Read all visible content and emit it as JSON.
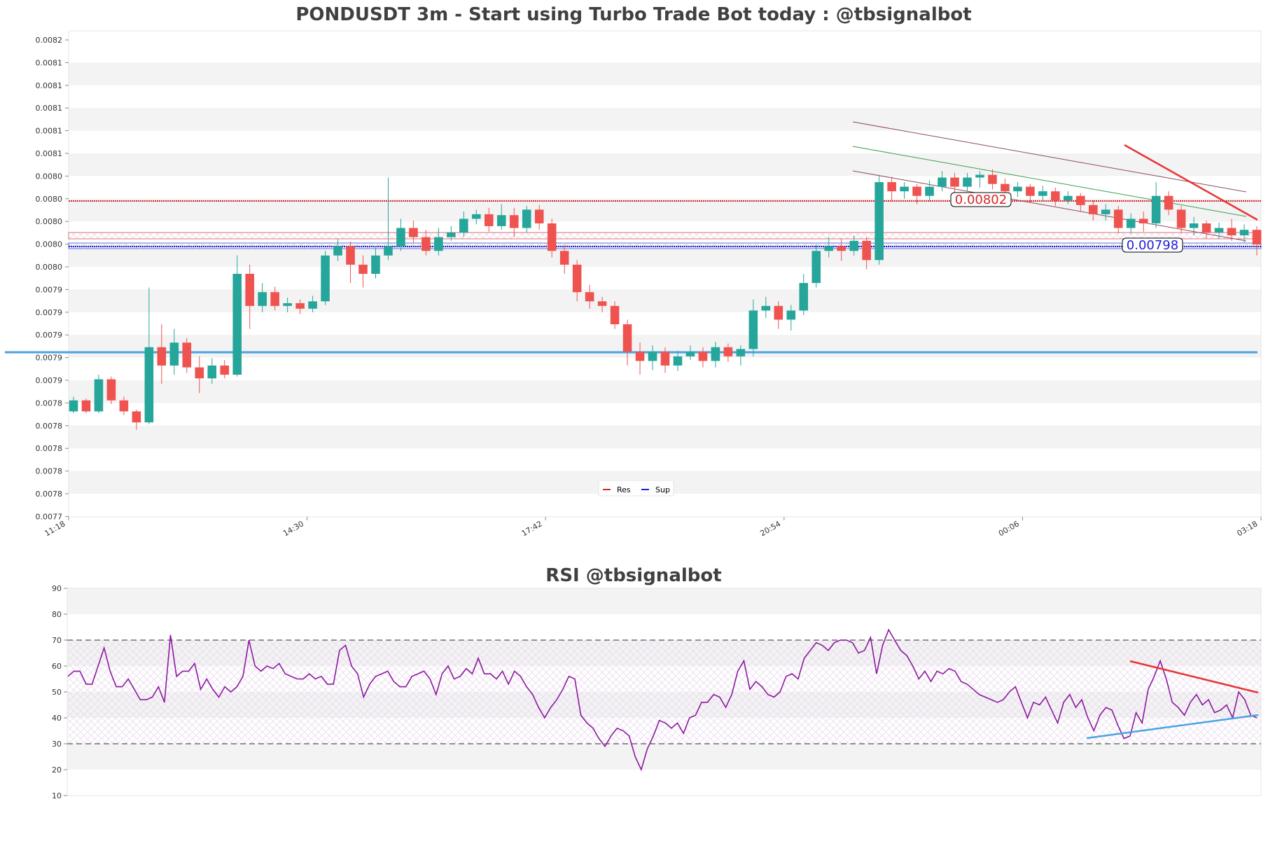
{
  "chart_data": [
    {
      "type": "candlestick",
      "title": "PONDUSDT 3m - Start using Turbo Trade Bot today : @tbsignalbot",
      "y_tick_labels": [
        "0.0082",
        "0.0081",
        "0.0081",
        "0.0081",
        "0.0081",
        "0.0081",
        "0.0080",
        "0.0080",
        "0.0080",
        "0.0080",
        "0.0080",
        "0.0079",
        "0.0079",
        "0.0079",
        "0.0079",
        "0.0079",
        "0.0078",
        "0.0078",
        "0.0078",
        "0.0078",
        "0.0078",
        "0.0077"
      ],
      "x_tick_labels": [
        "11:18",
        "14:30",
        "17:42",
        "20:54",
        "00:06",
        "03:18"
      ],
      "ylim": [
        0.007695,
        0.008225
      ],
      "grid": "horizontal bands",
      "legend_position": "bottom-center",
      "legend": [
        {
          "label": "Res",
          "color": "#d62728"
        },
        {
          "label": "Sup",
          "color": "#1f1fd6"
        }
      ],
      "resistance_level": 0.00802,
      "support_level": 0.00798,
      "resistance_label": "0.00802",
      "support_label": "0.00798",
      "candles": [
        {
          "o": 0.00781,
          "c": 0.007822,
          "h": 0.007826,
          "l": 0.007808
        },
        {
          "o": 0.007822,
          "c": 0.00781,
          "h": 0.007824,
          "l": 0.007808
        },
        {
          "o": 0.00781,
          "c": 0.007845,
          "h": 0.00785,
          "l": 0.007808
        },
        {
          "o": 0.007845,
          "c": 0.007822,
          "h": 0.007848,
          "l": 0.007818
        },
        {
          "o": 0.007822,
          "c": 0.00781,
          "h": 0.007826,
          "l": 0.007806
        },
        {
          "o": 0.00781,
          "c": 0.007798,
          "h": 0.007812,
          "l": 0.00779
        },
        {
          "o": 0.007798,
          "c": 0.00788,
          "h": 0.007945,
          "l": 0.007796
        },
        {
          "o": 0.00788,
          "c": 0.00786,
          "h": 0.007905,
          "l": 0.00784
        },
        {
          "o": 0.00786,
          "c": 0.007885,
          "h": 0.0079,
          "l": 0.00785
        },
        {
          "o": 0.007885,
          "c": 0.007858,
          "h": 0.00789,
          "l": 0.007852
        },
        {
          "o": 0.007858,
          "c": 0.007846,
          "h": 0.00787,
          "l": 0.00783
        },
        {
          "o": 0.007846,
          "c": 0.00786,
          "h": 0.007868,
          "l": 0.00784
        },
        {
          "o": 0.00786,
          "c": 0.00785,
          "h": 0.007866,
          "l": 0.007846
        },
        {
          "o": 0.00785,
          "c": 0.00796,
          "h": 0.00798,
          "l": 0.007848
        },
        {
          "o": 0.00796,
          "c": 0.007925,
          "h": 0.00797,
          "l": 0.0079
        },
        {
          "o": 0.007925,
          "c": 0.00794,
          "h": 0.00795,
          "l": 0.007918
        },
        {
          "o": 0.00794,
          "c": 0.007925,
          "h": 0.007946,
          "l": 0.00792
        },
        {
          "o": 0.007925,
          "c": 0.007928,
          "h": 0.007934,
          "l": 0.007918
        },
        {
          "o": 0.007928,
          "c": 0.007922,
          "h": 0.007932,
          "l": 0.007916
        },
        {
          "o": 0.007922,
          "c": 0.00793,
          "h": 0.007936,
          "l": 0.007918
        },
        {
          "o": 0.00793,
          "c": 0.00798,
          "h": 0.007985,
          "l": 0.007926
        },
        {
          "o": 0.00798,
          "c": 0.00799,
          "h": 0.007998,
          "l": 0.007974
        },
        {
          "o": 0.00799,
          "c": 0.00797,
          "h": 0.007995,
          "l": 0.00795
        },
        {
          "o": 0.00797,
          "c": 0.00796,
          "h": 0.00798,
          "l": 0.007945
        },
        {
          "o": 0.00796,
          "c": 0.00798,
          "h": 0.00799,
          "l": 0.007955
        },
        {
          "o": 0.00798,
          "c": 0.00799,
          "h": 0.008065,
          "l": 0.007975
        },
        {
          "o": 0.00799,
          "c": 0.00801,
          "h": 0.00802,
          "l": 0.007985
        },
        {
          "o": 0.00801,
          "c": 0.008,
          "h": 0.008018,
          "l": 0.007994
        },
        {
          "o": 0.008,
          "c": 0.007985,
          "h": 0.008008,
          "l": 0.00798
        },
        {
          "o": 0.007985,
          "c": 0.008,
          "h": 0.00801,
          "l": 0.00798
        },
        {
          "o": 0.008,
          "c": 0.008005,
          "h": 0.008012,
          "l": 0.007996
        },
        {
          "o": 0.008005,
          "c": 0.00802,
          "h": 0.008028,
          "l": 0.008
        },
        {
          "o": 0.00802,
          "c": 0.008025,
          "h": 0.00803,
          "l": 0.008014
        },
        {
          "o": 0.008025,
          "c": 0.008012,
          "h": 0.008032,
          "l": 0.008006
        },
        {
          "o": 0.008012,
          "c": 0.008024,
          "h": 0.008036,
          "l": 0.008008
        },
        {
          "o": 0.008024,
          "c": 0.00801,
          "h": 0.008032,
          "l": 0.008
        },
        {
          "o": 0.00801,
          "c": 0.00803,
          "h": 0.008034,
          "l": 0.008005
        },
        {
          "o": 0.00803,
          "c": 0.008015,
          "h": 0.008035,
          "l": 0.008008
        },
        {
          "o": 0.008015,
          "c": 0.007985,
          "h": 0.00802,
          "l": 0.007978
        },
        {
          "o": 0.007985,
          "c": 0.00797,
          "h": 0.007992,
          "l": 0.00796
        },
        {
          "o": 0.00797,
          "c": 0.00794,
          "h": 0.007975,
          "l": 0.00793
        },
        {
          "o": 0.00794,
          "c": 0.00793,
          "h": 0.007948,
          "l": 0.007922
        },
        {
          "o": 0.00793,
          "c": 0.007925,
          "h": 0.007935,
          "l": 0.007918
        },
        {
          "o": 0.007925,
          "c": 0.007905,
          "h": 0.00793,
          "l": 0.0079
        },
        {
          "o": 0.007905,
          "c": 0.007875,
          "h": 0.00791,
          "l": 0.00786
        },
        {
          "o": 0.007875,
          "c": 0.007865,
          "h": 0.007885,
          "l": 0.00785
        },
        {
          "o": 0.007865,
          "c": 0.007875,
          "h": 0.007882,
          "l": 0.007855
        },
        {
          "o": 0.007875,
          "c": 0.00786,
          "h": 0.00788,
          "l": 0.007852
        },
        {
          "o": 0.00786,
          "c": 0.00787,
          "h": 0.007876,
          "l": 0.007854
        },
        {
          "o": 0.00787,
          "c": 0.007875,
          "h": 0.007882,
          "l": 0.007866
        },
        {
          "o": 0.007875,
          "c": 0.007865,
          "h": 0.00788,
          "l": 0.007858
        },
        {
          "o": 0.007865,
          "c": 0.00788,
          "h": 0.007886,
          "l": 0.007858
        },
        {
          "o": 0.00788,
          "c": 0.00787,
          "h": 0.007884,
          "l": 0.007864
        },
        {
          "o": 0.00787,
          "c": 0.007878,
          "h": 0.007882,
          "l": 0.00786
        },
        {
          "o": 0.007878,
          "c": 0.00792,
          "h": 0.007932,
          "l": 0.00787
        },
        {
          "o": 0.00792,
          "c": 0.007925,
          "h": 0.007935,
          "l": 0.007912
        },
        {
          "o": 0.007925,
          "c": 0.00791,
          "h": 0.00793,
          "l": 0.0079
        },
        {
          "o": 0.00791,
          "c": 0.00792,
          "h": 0.007926,
          "l": 0.007898
        },
        {
          "o": 0.00792,
          "c": 0.00795,
          "h": 0.00796,
          "l": 0.007915
        },
        {
          "o": 0.00795,
          "c": 0.007985,
          "h": 0.007992,
          "l": 0.007945
        },
        {
          "o": 0.007985,
          "c": 0.00799,
          "h": 0.008,
          "l": 0.007978
        },
        {
          "o": 0.00799,
          "c": 0.007985,
          "h": 0.007998,
          "l": 0.007974
        },
        {
          "o": 0.007985,
          "c": 0.007996,
          "h": 0.008002,
          "l": 0.00798
        },
        {
          "o": 0.007996,
          "c": 0.007975,
          "h": 0.008,
          "l": 0.007965
        },
        {
          "o": 0.007975,
          "c": 0.00806,
          "h": 0.008068,
          "l": 0.00797
        },
        {
          "o": 0.00806,
          "c": 0.00805,
          "h": 0.008066,
          "l": 0.00804
        },
        {
          "o": 0.00805,
          "c": 0.008055,
          "h": 0.00806,
          "l": 0.008042
        },
        {
          "o": 0.008055,
          "c": 0.008045,
          "h": 0.008058,
          "l": 0.008036
        },
        {
          "o": 0.008045,
          "c": 0.008055,
          "h": 0.008062,
          "l": 0.00804
        },
        {
          "o": 0.008055,
          "c": 0.008065,
          "h": 0.008072,
          "l": 0.00805
        },
        {
          "o": 0.008065,
          "c": 0.008055,
          "h": 0.00807,
          "l": 0.008048
        },
        {
          "o": 0.008055,
          "c": 0.008065,
          "h": 0.00807,
          "l": 0.00805
        },
        {
          "o": 0.008065,
          "c": 0.008068,
          "h": 0.008072,
          "l": 0.008054
        },
        {
          "o": 0.008068,
          "c": 0.008058,
          "h": 0.008074,
          "l": 0.008052
        },
        {
          "o": 0.008058,
          "c": 0.00805,
          "h": 0.008064,
          "l": 0.008044
        },
        {
          "o": 0.00805,
          "c": 0.008055,
          "h": 0.00806,
          "l": 0.008044
        },
        {
          "o": 0.008055,
          "c": 0.008045,
          "h": 0.008058,
          "l": 0.008038
        },
        {
          "o": 0.008045,
          "c": 0.00805,
          "h": 0.008056,
          "l": 0.00804
        },
        {
          "o": 0.00805,
          "c": 0.00804,
          "h": 0.008054,
          "l": 0.008034
        },
        {
          "o": 0.00804,
          "c": 0.008045,
          "h": 0.00805,
          "l": 0.008036
        },
        {
          "o": 0.008045,
          "c": 0.008035,
          "h": 0.008048,
          "l": 0.008028
        },
        {
          "o": 0.008035,
          "c": 0.008025,
          "h": 0.00804,
          "l": 0.008018
        },
        {
          "o": 0.008025,
          "c": 0.00803,
          "h": 0.008036,
          "l": 0.008018
        },
        {
          "o": 0.00803,
          "c": 0.00801,
          "h": 0.008034,
          "l": 0.008004
        },
        {
          "o": 0.00801,
          "c": 0.00802,
          "h": 0.008026,
          "l": 0.008004
        },
        {
          "o": 0.00802,
          "c": 0.008015,
          "h": 0.008028,
          "l": 0.008006
        },
        {
          "o": 0.008015,
          "c": 0.008045,
          "h": 0.00806,
          "l": 0.00801
        },
        {
          "o": 0.008045,
          "c": 0.00803,
          "h": 0.00805,
          "l": 0.008024
        },
        {
          "o": 0.00803,
          "c": 0.00801,
          "h": 0.008034,
          "l": 0.008004
        },
        {
          "o": 0.00801,
          "c": 0.008015,
          "h": 0.008022,
          "l": 0.008002
        },
        {
          "o": 0.008015,
          "c": 0.008005,
          "h": 0.008018,
          "l": 0.007998
        },
        {
          "o": 0.008005,
          "c": 0.00801,
          "h": 0.008016,
          "l": 0.007998
        },
        {
          "o": 0.00801,
          "c": 0.008002,
          "h": 0.00802,
          "l": 0.007996
        },
        {
          "o": 0.008002,
          "c": 0.008008,
          "h": 0.008014,
          "l": 0.007994
        },
        {
          "o": 0.008008,
          "c": 0.007992,
          "h": 0.008012,
          "l": 0.00798
        }
      ]
    },
    {
      "type": "line",
      "title": "RSI @tbsignalbot",
      "y_tick_labels": [
        "90",
        "80",
        "70",
        "60",
        "50",
        "40",
        "30",
        "20",
        "10"
      ],
      "ylim": [
        10,
        90
      ],
      "overbought": 70,
      "oversold": 30,
      "series": [
        {
          "color": "#8b1a9e",
          "values": [
            56,
            58,
            58,
            53,
            53,
            60,
            67,
            58,
            52,
            52,
            55,
            51,
            47,
            47,
            48,
            52,
            46,
            72,
            56,
            58,
            58,
            61,
            51,
            55,
            51,
            48,
            52,
            50,
            52,
            56,
            70,
            60,
            58,
            60,
            59,
            61,
            57,
            56,
            55,
            55,
            57,
            55,
            56,
            53,
            53,
            66,
            68,
            60,
            57,
            48,
            53,
            56,
            57,
            58,
            54,
            52,
            52,
            56,
            57,
            58,
            55,
            49,
            57,
            60,
            55,
            56,
            59,
            57,
            63,
            57,
            57,
            55,
            58,
            53,
            58,
            56,
            52,
            49,
            44,
            40,
            44,
            47,
            51,
            56,
            55,
            41,
            38,
            36,
            32,
            29,
            33,
            36,
            35,
            33,
            25,
            20,
            28,
            33,
            39,
            38,
            36,
            38,
            34,
            40,
            41,
            46,
            46,
            49,
            48,
            44,
            49,
            58,
            62,
            51,
            54,
            52,
            49,
            48,
            50,
            56,
            57,
            55,
            63,
            66,
            69,
            68,
            66,
            69,
            70,
            70,
            69,
            65,
            66,
            71,
            57,
            68,
            74,
            70,
            66,
            64,
            60,
            55,
            58,
            54,
            58,
            57,
            59,
            58,
            54,
            53,
            51,
            49,
            48,
            47,
            46,
            47,
            50,
            52,
            46,
            40,
            46,
            45,
            48,
            43,
            38,
            46,
            49,
            44,
            47,
            40,
            35,
            41,
            44,
            43,
            37,
            32,
            33,
            42,
            38,
            51,
            56,
            62,
            55,
            46,
            44,
            41,
            46,
            49,
            45,
            47,
            42,
            43,
            45,
            40,
            50,
            47,
            41,
            40
          ]
        }
      ]
    }
  ]
}
